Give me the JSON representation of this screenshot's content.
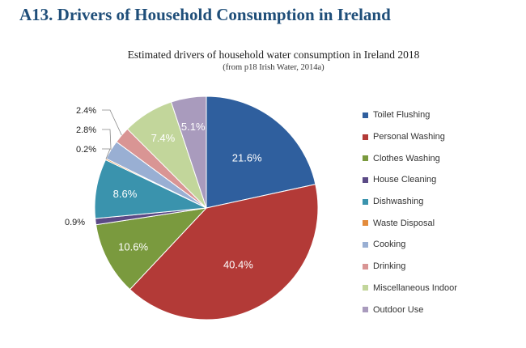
{
  "page": {
    "heading": "A13. Drivers of Household Consumption in Ireland"
  },
  "chart_data": {
    "type": "pie",
    "title": "Estimated drivers of household water consumption in Ireland 2018",
    "subtitle": "(from p18 Irish Water, 2014a)",
    "legend_position": "right",
    "slices": [
      {
        "label": "Toilet Flushing",
        "value": 21.6,
        "display": "21.6%",
        "color": "#2f5f9e",
        "label_placement": "inside"
      },
      {
        "label": "Personal Washing",
        "value": 40.4,
        "display": "40.4%",
        "color": "#b33a37",
        "label_placement": "inside"
      },
      {
        "label": "Clothes Washing",
        "value": 10.6,
        "display": "10.6%",
        "color": "#7a9a3e",
        "label_placement": "inside"
      },
      {
        "label": "House Cleaning",
        "value": 0.9,
        "display": "0.9%",
        "color": "#5b4a86",
        "label_placement": "outside"
      },
      {
        "label": "Dishwashing",
        "value": 8.6,
        "display": "8.6%",
        "color": "#3a93ad",
        "label_placement": "inside"
      },
      {
        "label": "Waste Disposal",
        "value": 0.2,
        "display": "0.2%",
        "color": "#e38b3c",
        "label_placement": "outside"
      },
      {
        "label": "Cooking",
        "value": 2.8,
        "display": "2.8%",
        "color": "#99afd3",
        "label_placement": "outside"
      },
      {
        "label": "Drinking",
        "value": 2.4,
        "display": "2.4%",
        "color": "#d99594",
        "label_placement": "outside"
      },
      {
        "label": "Miscellaneous Indoor",
        "value": 7.4,
        "display": "7.4%",
        "color": "#c2d69b",
        "label_placement": "inside"
      },
      {
        "label": "Outdoor Use",
        "value": 5.1,
        "display": "5.1%",
        "color": "#a99bbd",
        "label_placement": "inside"
      }
    ]
  }
}
